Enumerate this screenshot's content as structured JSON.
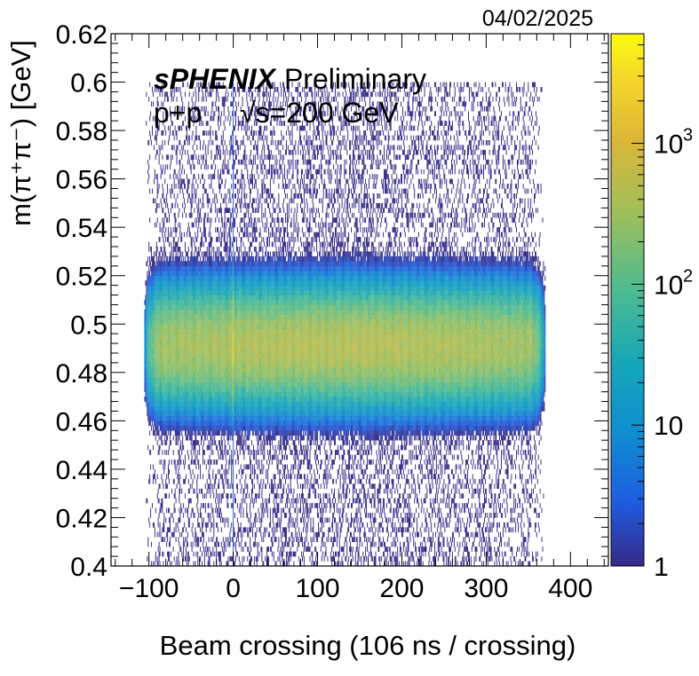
{
  "date": "04/02/2025",
  "chart_data": {
    "type": "heatmap",
    "xlabel": "Beam crossing (106 ns / crossing)",
    "ylabel": "m(π⁺π⁻) [GeV]",
    "xlim": [
      -145,
      445
    ],
    "ylim": [
      0.4,
      0.62
    ],
    "x_ticks": [
      "−100",
      "0",
      "100",
      "200",
      "300",
      "400"
    ],
    "x_tick_values": [
      -100,
      0,
      100,
      200,
      300,
      400
    ],
    "y_ticks": [
      "0.4",
      "0.42",
      "0.44",
      "0.46",
      "0.48",
      "0.5",
      "0.52",
      "0.54",
      "0.56",
      "0.58",
      "0.6",
      "0.62"
    ],
    "y_tick_values": [
      0.4,
      0.42,
      0.44,
      0.46,
      0.48,
      0.5,
      0.52,
      0.54,
      0.56,
      0.58,
      0.6,
      0.62
    ],
    "z_scale": "log",
    "z_range": [
      1,
      6000
    ],
    "z_ticks": [
      {
        "value": 1,
        "base": "1",
        "exp": ""
      },
      {
        "value": 10,
        "base": "10",
        "exp": ""
      },
      {
        "value": 100,
        "base": "10",
        "exp": "2"
      },
      {
        "value": 1000,
        "base": "10",
        "exp": "3"
      }
    ],
    "peak_mass": 0.491,
    "peak_max_count": 300,
    "crossing_range": [
      -95,
      360
    ],
    "hot_crossing": 0,
    "annotation": {
      "experiment": "sPHENIX",
      "status": "Preliminary",
      "system": "p+p",
      "energy": "√s=200 GeV"
    },
    "colormap": [
      "#352a87",
      "#1f5ce0",
      "#0f8ed0",
      "#16a6b8",
      "#4ebb90",
      "#9ebf5b",
      "#dcb637",
      "#f6d82a",
      "#f9fb0e"
    ]
  }
}
